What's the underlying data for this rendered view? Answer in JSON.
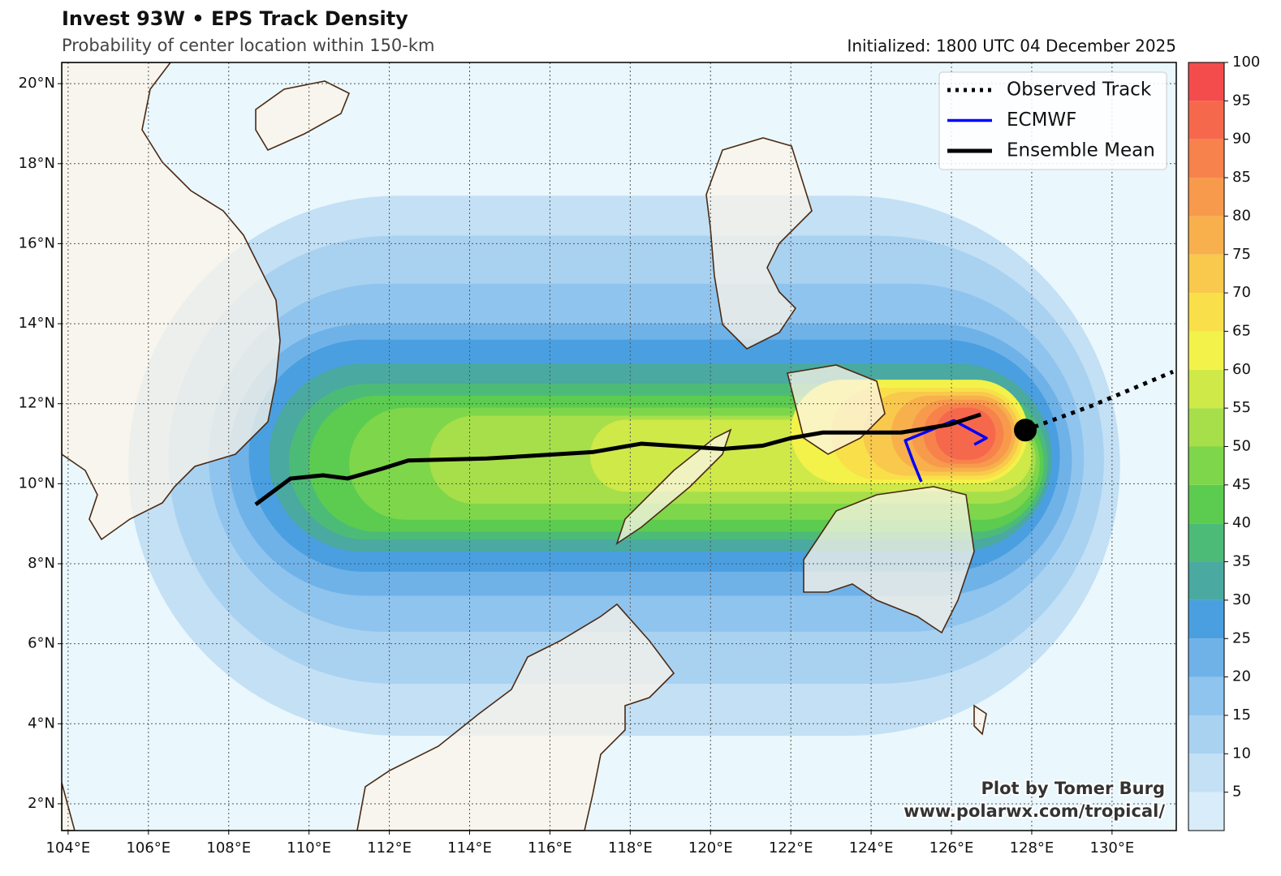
{
  "chart_data": {
    "type": "track-map",
    "title": "Invest 93W • EPS Track Density",
    "subtitle": "Probability of center location within 150-km",
    "initialized": "Initialized: 1800 UTC 04 December 2025",
    "credit": [
      "Plot by Tomer Burg",
      "www.polarwx.com/tropical/"
    ],
    "xlim": [
      103.84,
      131.6
    ],
    "ylim": [
      1.33,
      20.53
    ],
    "xticks": [
      {
        "value": 104,
        "label": "104°E"
      },
      {
        "value": 106,
        "label": "106°E"
      },
      {
        "value": 108,
        "label": "108°E"
      },
      {
        "value": 110,
        "label": "110°E"
      },
      {
        "value": 112,
        "label": "112°E"
      },
      {
        "value": 114,
        "label": "114°E"
      },
      {
        "value": 116,
        "label": "116°E"
      },
      {
        "value": 118,
        "label": "118°E"
      },
      {
        "value": 120,
        "label": "120°E"
      },
      {
        "value": 122,
        "label": "122°E"
      },
      {
        "value": 124,
        "label": "124°E"
      },
      {
        "value": 126,
        "label": "126°E"
      },
      {
        "value": 128,
        "label": "128°E"
      },
      {
        "value": 130,
        "label": "130°E"
      }
    ],
    "yticks": [
      {
        "value": 2,
        "label": "2°N"
      },
      {
        "value": 4,
        "label": "4°N"
      },
      {
        "value": 6,
        "label": "6°N"
      },
      {
        "value": 8,
        "label": "8°N"
      },
      {
        "value": 10,
        "label": "10°N"
      },
      {
        "value": 12,
        "label": "12°N"
      },
      {
        "value": 14,
        "label": "14°N"
      },
      {
        "value": 16,
        "label": "16°N"
      },
      {
        "value": 18,
        "label": "18°N"
      },
      {
        "value": 20,
        "label": "20°N"
      }
    ],
    "grid": true,
    "legend": "upper right",
    "colorbar": {
      "clim": [
        0,
        100
      ],
      "ticks": [
        5,
        10,
        15,
        20,
        25,
        30,
        35,
        40,
        45,
        50,
        55,
        60,
        65,
        70,
        75,
        80,
        85,
        90,
        95,
        100
      ],
      "colors": [
        "#d9ecf9",
        "#c3e0f5",
        "#a9d2f1",
        "#8fc4ee",
        "#6fb2e8",
        "#4a9fe0",
        "#4aa9a0",
        "#4dbb78",
        "#5ccc50",
        "#7ed64a",
        "#a6df4a",
        "#cfe948",
        "#f3f24a",
        "#f9e04a",
        "#f8c94c",
        "#f7b04c",
        "#f79a4c",
        "#f7824c",
        "#f6684c",
        "#f44c4c"
      ]
    },
    "density": [
      {
        "level": 5,
        "lon": [
          105.5,
          130.2
        ],
        "lat": [
          3.7,
          17.2
        ]
      },
      {
        "level": 10,
        "lon": [
          106.5,
          129.8
        ],
        "lat": [
          5,
          16.2
        ]
      },
      {
        "level": 15,
        "lon": [
          107.5,
          129.3
        ],
        "lat": [
          6.3,
          15
        ]
      },
      {
        "level": 20,
        "lon": [
          108,
          129
        ],
        "lat": [
          7.2,
          14
        ]
      },
      {
        "level": 25,
        "lon": [
          108.5,
          128.7
        ],
        "lat": [
          7.8,
          13.6
        ]
      },
      {
        "level": 30,
        "lon": [
          109,
          128.5
        ],
        "lat": [
          8.3,
          13
        ]
      },
      {
        "level": 35,
        "lon": [
          109.5,
          128.4
        ],
        "lat": [
          8.6,
          12.5
        ]
      },
      {
        "level": 40,
        "lon": [
          110,
          128.3
        ],
        "lat": [
          8.8,
          12.2
        ]
      },
      {
        "level": 45,
        "lon": [
          111,
          128.2
        ],
        "lat": [
          9.1,
          11.9
        ]
      },
      {
        "level": 50,
        "lon": [
          113,
          128.1
        ],
        "lat": [
          9.5,
          11.7
        ]
      },
      {
        "level": 55,
        "lon": [
          117,
          128
        ],
        "lat": [
          9.8,
          11.6
        ]
      },
      {
        "level": 60,
        "lon": [
          122,
          127.9
        ],
        "lat": [
          10,
          12.6
        ]
      },
      {
        "level": 65,
        "lon": [
          123,
          127.8
        ],
        "lat": [
          10.1,
          12.4
        ]
      },
      {
        "level": 70,
        "lon": [
          123.8,
          127.7
        ],
        "lat": [
          10.2,
          12.3
        ]
      },
      {
        "level": 75,
        "lon": [
          124.5,
          127.6
        ],
        "lat": [
          10.3,
          12.2
        ]
      },
      {
        "level": 80,
        "lon": [
          125,
          127.5
        ],
        "lat": [
          10.4,
          12.1
        ]
      },
      {
        "level": 85,
        "lon": [
          125.3,
          127.3
        ],
        "lat": [
          10.5,
          12
        ]
      },
      {
        "level": 90,
        "lon": [
          125.6,
          127.1
        ],
        "lat": [
          10.6,
          11.9
        ]
      }
    ],
    "series": [
      {
        "name": "Observed Track",
        "color": "#000000",
        "style": "dotted",
        "x": [
          127.84,
          129.5,
          131.52
        ],
        "y": [
          11.34,
          11.95,
          12.8
        ]
      },
      {
        "name": "ECMWF",
        "color": "#0000ff",
        "style": "solid",
        "x": [
          125.25,
          125.05,
          124.85,
          126.06,
          126.87,
          126.57
        ],
        "y": [
          10.05,
          10.54,
          11.08,
          11.58,
          11.14,
          10.98
        ]
      },
      {
        "name": "Ensemble Mean",
        "color": "#000000",
        "style": "thick",
        "x": [
          108.67,
          109.54,
          110.35,
          110.96,
          111.8,
          112.47,
          114.43,
          117.06,
          118.27,
          120.3,
          121.3,
          122,
          122.8,
          124.75,
          125.96,
          126.73
        ],
        "y": [
          9.48,
          10.13,
          10.21,
          10.13,
          10.37,
          10.58,
          10.63,
          10.79,
          11,
          10.87,
          10.95,
          11.14,
          11.28,
          11.28,
          11.48,
          11.73
        ]
      }
    ]
  }
}
